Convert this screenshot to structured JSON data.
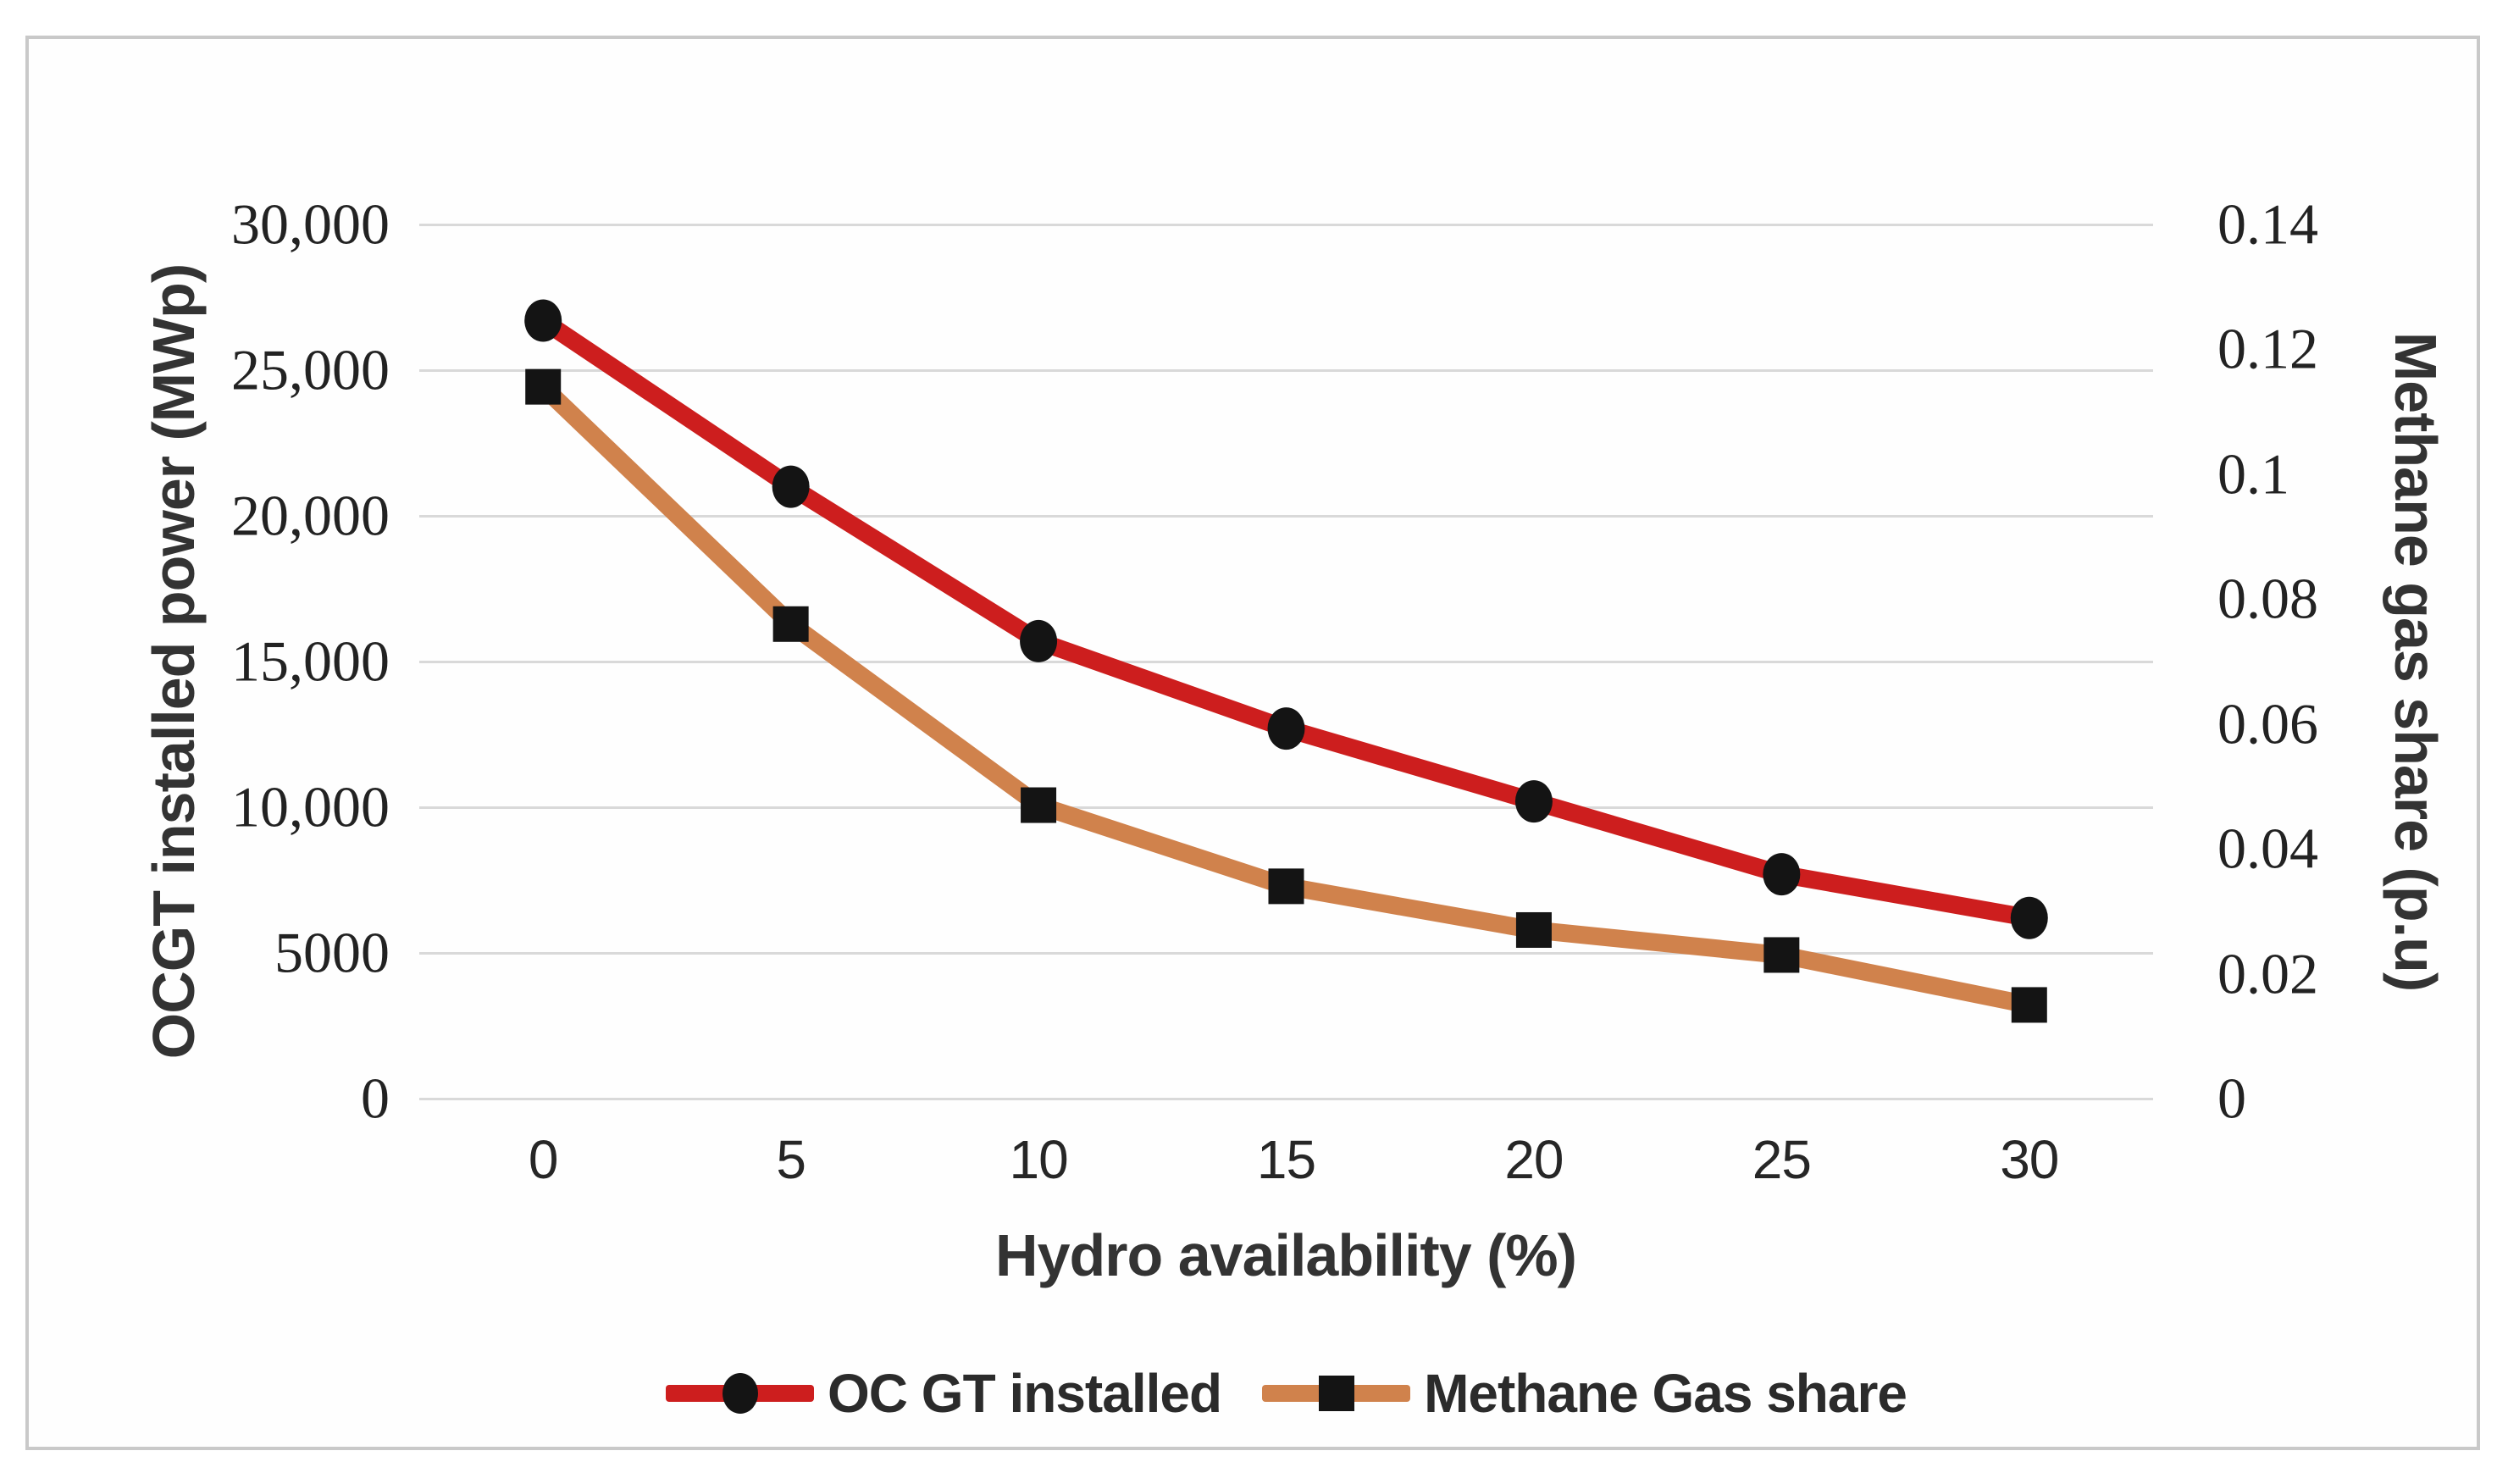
{
  "figure": {
    "background": "#ffffff",
    "frame_border_color": "#c9c9c9",
    "gridline_color": "#d9d9d9",
    "marker_color": "#141414"
  },
  "chart_data": {
    "type": "line",
    "x_axis_type": "category",
    "x": [
      0,
      5,
      10,
      15,
      20,
      25,
      30
    ],
    "x_tick_labels": [
      "0",
      "5",
      "10",
      "15",
      "20",
      "25",
      "30"
    ],
    "xlabel": "Hydro availability (%)",
    "grid": "horizontal",
    "left_axis": {
      "label": "OCGT installed power (MWp)",
      "min": 0,
      "max": 30000,
      "step": 5000,
      "tick_labels": [
        "30,000",
        "25,000",
        "20,000",
        "15,000",
        "10,000",
        "5000",
        "0"
      ],
      "tick_values": [
        30000,
        25000,
        20000,
        15000,
        10000,
        5000,
        0
      ]
    },
    "right_axis": {
      "label": "Methane gas share (p.u)",
      "min": 0,
      "max": 0.14,
      "step": 0.02,
      "tick_labels": [
        "0.14",
        "0.12",
        "0.1",
        "0.08",
        "0.06",
        "0.04",
        "0.02",
        "0"
      ],
      "tick_values": [
        0.14,
        0.12,
        0.1,
        0.08,
        0.06,
        0.04,
        0.02,
        0
      ]
    },
    "series": [
      {
        "name": "OC GT installed",
        "axis": "left",
        "color": "#cd1e1e",
        "marker": "circle",
        "values": [
          26700,
          21000,
          15700,
          12700,
          10200,
          7700,
          6200
        ]
      },
      {
        "name": "Methane Gas share",
        "axis": "right",
        "color": "#d0824c",
        "marker": "square",
        "values": [
          0.114,
          0.076,
          0.047,
          0.034,
          0.027,
          0.023,
          0.015
        ]
      }
    ],
    "legend": {
      "position": "bottom",
      "items": [
        "OC GT installed",
        "Methane Gas share"
      ]
    }
  }
}
